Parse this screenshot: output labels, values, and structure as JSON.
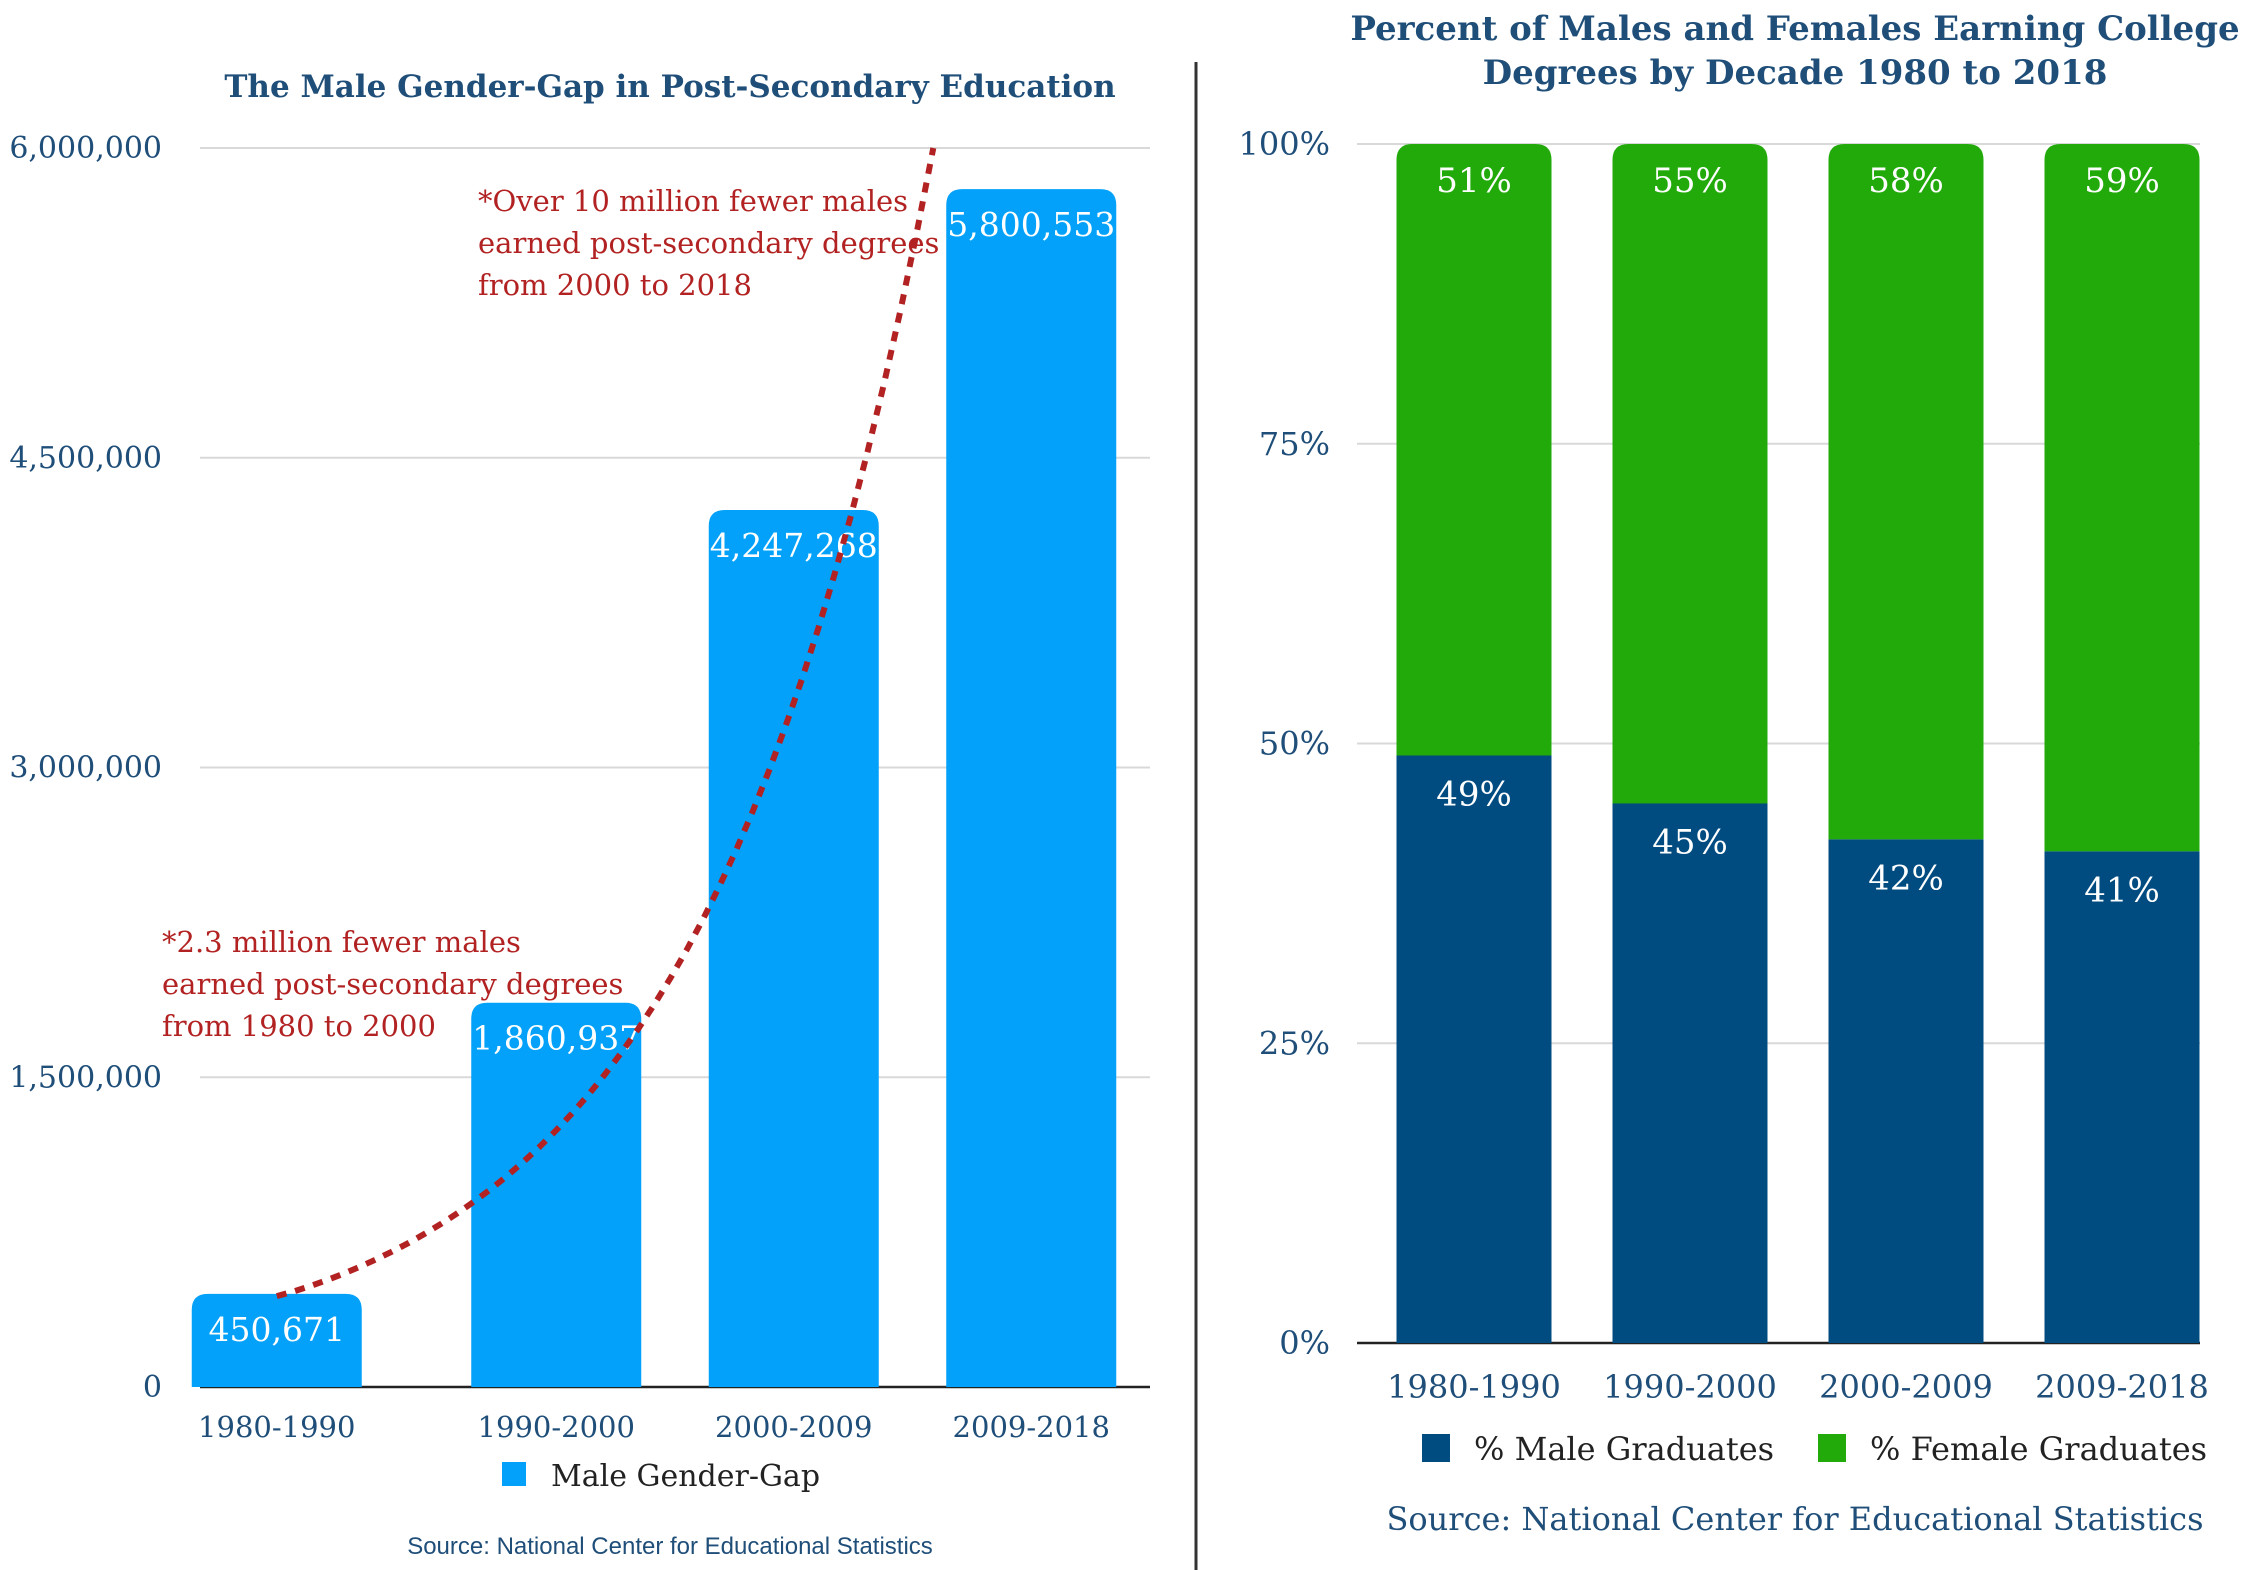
{
  "colors": {
    "title": "#1f4e79",
    "gap_bar": "#03a1f9",
    "male": "#004b80",
    "female": "#22aa0b",
    "annotation": "#b22222",
    "grid": "#d9d9d9",
    "axis": "#222222",
    "divider": "#333333",
    "tick_text": "#1f4e79"
  },
  "chart_data": [
    {
      "type": "bar",
      "title": "The Male Gender-Gap in Post-Secondary Education",
      "categories": [
        "1980-1990",
        "1990-2000",
        "2000-2009",
        "2009-2018"
      ],
      "series": [
        {
          "name": "Male Gender-Gap",
          "values": [
            450671,
            1860937,
            4247268,
            5800553
          ]
        }
      ],
      "data_labels": [
        "450,671",
        "1,860,937",
        "4,247,268",
        "5,800,553"
      ],
      "ylim": [
        0,
        6000000
      ],
      "yticks": [
        0,
        1500000,
        3000000,
        4500000,
        6000000
      ],
      "ytick_labels": [
        "0",
        "1,500,000",
        "3,000,000",
        "4,500,000",
        "6,000,000"
      ],
      "grid": true,
      "legend": "bottom",
      "trendline": {
        "style": "dotted",
        "color": "#b22222"
      },
      "annotations": [
        {
          "lines": [
            "*2.3 million fewer males",
            "earned post-secondary degrees",
            "from 1980 to 2000"
          ]
        },
        {
          "lines": [
            "*Over 10 million fewer males",
            "earned post-secondary degrees",
            "from 2000 to 2018"
          ]
        }
      ],
      "source": "Source: National Center for Educational Statistics"
    },
    {
      "type": "bar",
      "stacked": true,
      "title_lines": [
        "Percent of Males and Females Earning College",
        "Degrees by Decade 1980 to 2018"
      ],
      "categories": [
        "1980-1990",
        "1990-2000",
        "2000-2009",
        "2009-2018"
      ],
      "series": [
        {
          "name": "% Male Graduates",
          "values": [
            49,
            45,
            42,
            41
          ],
          "labels": [
            "49%",
            "45%",
            "42%",
            "41%"
          ]
        },
        {
          "name": "% Female Graduates",
          "values": [
            51,
            55,
            58,
            59
          ],
          "labels": [
            "51%",
            "55%",
            "58%",
            "59%"
          ]
        }
      ],
      "ylim": [
        0,
        100
      ],
      "yticks": [
        0,
        25,
        50,
        75,
        100
      ],
      "ytick_labels": [
        "0%",
        "25%",
        "50%",
        "75%",
        "100%"
      ],
      "grid": true,
      "legend": "bottom",
      "source": "Source: National Center for Educational Statistics"
    }
  ]
}
